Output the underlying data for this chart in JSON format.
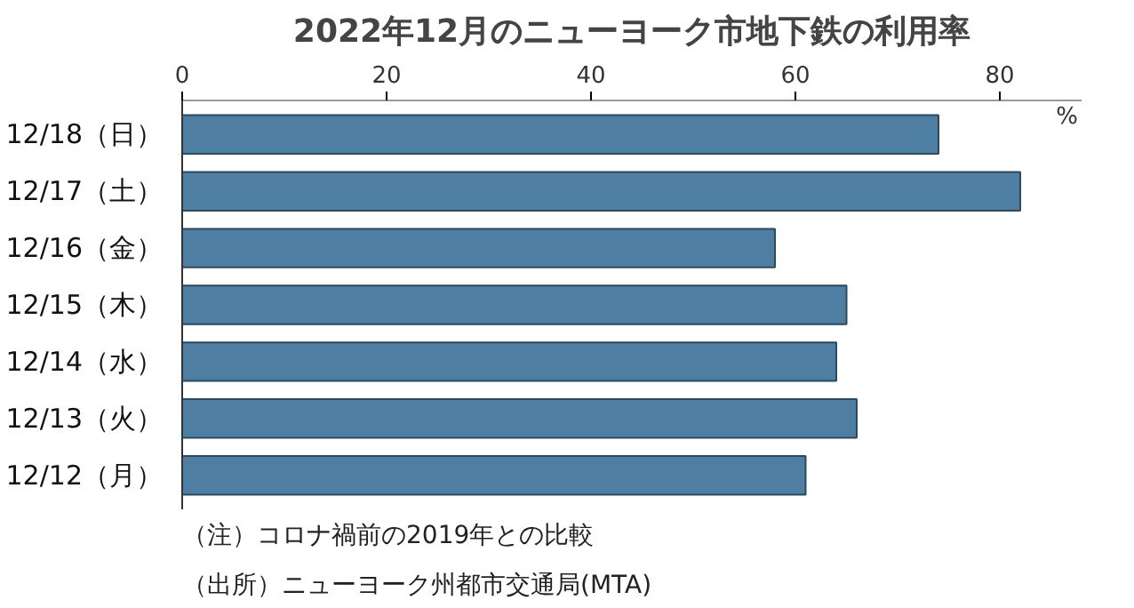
{
  "chart_data": {
    "type": "bar",
    "orientation": "horizontal",
    "title": "2022年12月のニューヨーク市地下鉄の利用率",
    "xlabel": "%",
    "categories": [
      "12/18（日）",
      "12/17（土）",
      "12/16（金）",
      "12/15（木）",
      "12/14（水）",
      "12/13（火）",
      "12/12（月）"
    ],
    "values": [
      74,
      82,
      58,
      65,
      64,
      66,
      61
    ],
    "color": "#4e7fa3",
    "xlim": [
      0,
      88
    ],
    "xticks": [
      0,
      20,
      40,
      60,
      80
    ],
    "grid": false,
    "annotations": [
      "（注）コロナ禍前の2019年との比較",
      "（出所）ニューヨーク州都市交通局(MTA)"
    ]
  }
}
